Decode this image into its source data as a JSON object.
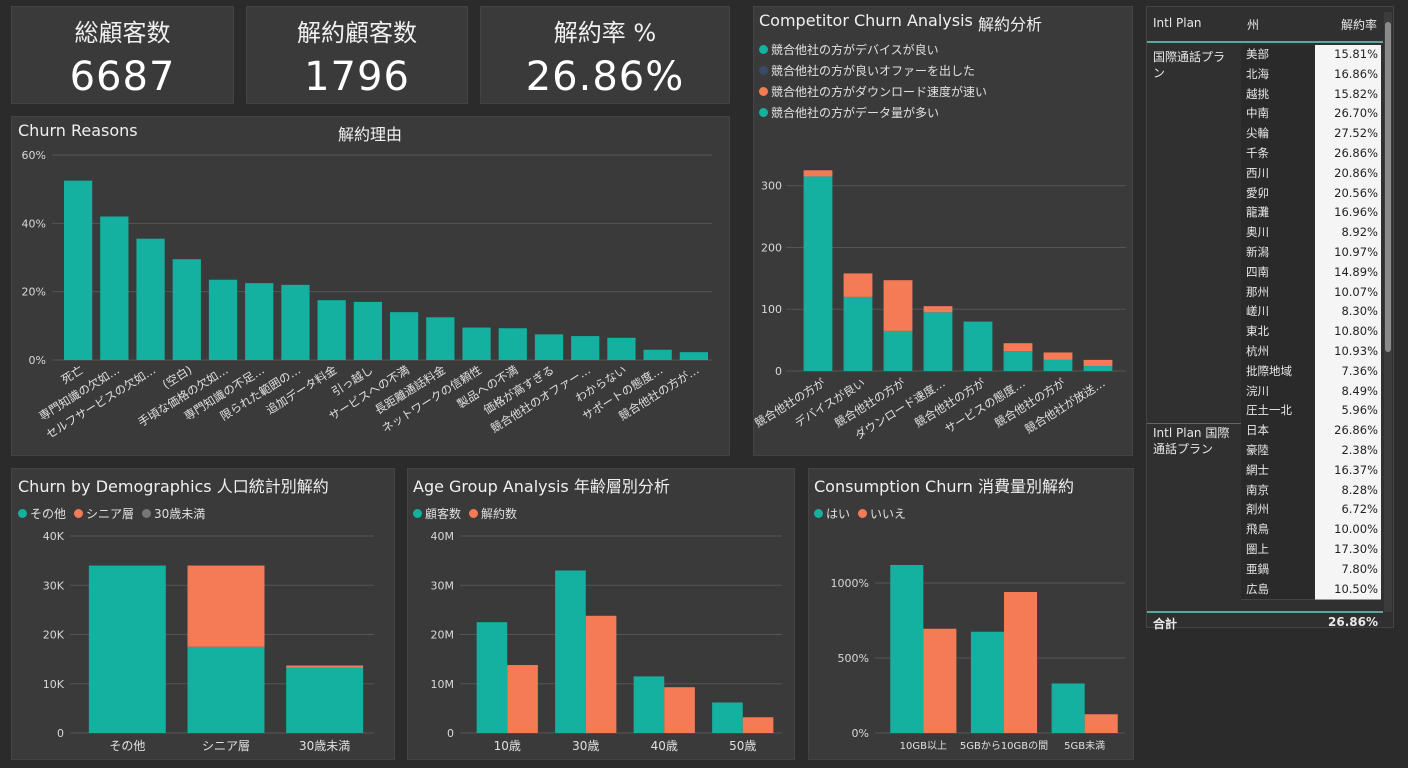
{
  "kpis": [
    {
      "label": "総顧客数",
      "value": "6687"
    },
    {
      "label": "解約顧客数",
      "value": "1796"
    },
    {
      "label": "解約率 %",
      "value": "26.86%"
    }
  ],
  "reasons": {
    "title_en": "Churn Reasons",
    "title_jp": "解約理由",
    "chart_data": {
      "type": "bar",
      "categories": [
        "死亡",
        "専門知識の欠如…",
        "セルフサービスの欠如…",
        "(空白)",
        "手頃な価格の欠如…",
        "専門知識の不足…",
        "限られた範囲の…",
        "追加データ料金",
        "引っ越し",
        "サービスへの不満",
        "長距離通話料金",
        "ネットワークの信頼性",
        "製品への不満",
        "価格が高すぎる",
        "競合他社のオファー…",
        "わからない",
        "サポートの態度…",
        "競合他社の方が…"
      ],
      "values": [
        52.5,
        42,
        35.5,
        29.5,
        23.5,
        22.5,
        22,
        17.5,
        17,
        14,
        12.5,
        9.5,
        9.3,
        7.5,
        7,
        6.5,
        3,
        2.3
      ],
      "yticks": [
        "0%",
        "20%",
        "40%",
        "60%"
      ],
      "ylim": [
        0,
        60
      ],
      "color": "#14b0a0"
    }
  },
  "competitor": {
    "title_en": "Competitor Churn Analysis",
    "title_jp": "解約分析",
    "legend": [
      {
        "label": "競合他社の方がデバイスが良い",
        "color": "#14b0a0"
      },
      {
        "label": "競合他社の方が良いオファーを出した",
        "color": "#3b4a6b"
      },
      {
        "label": "競合他社の方がダウンロード速度が速い",
        "color": "#f47b55"
      },
      {
        "label": "競合他社の方がデータ量が多い",
        "color": "#14b0a0"
      }
    ],
    "chart_data": {
      "type": "bar",
      "categories": [
        "競合他社の方が",
        "デバイスが良い",
        "競合他社の方が",
        "ダウンロード速度…",
        "競合他社の方が",
        "サービスの態度…",
        "競合他社の方が",
        "競合他社が放送…"
      ],
      "series": [
        {
          "values": [
            315,
            120,
            65,
            95,
            80,
            32,
            18,
            8
          ],
          "color": "#14b0a0"
        },
        {
          "values": [
            10,
            38,
            82,
            10,
            0,
            13,
            12,
            10
          ],
          "color": "#f47b55"
        }
      ],
      "yticks": [
        "0",
        "100",
        "200",
        "300"
      ],
      "ylim": [
        0,
        340
      ]
    }
  },
  "demographics": {
    "title": "Churn by Demographics 人口統計別解約",
    "legend": [
      {
        "label": "その他",
        "color": "#14b0a0"
      },
      {
        "label": "シニア層",
        "color": "#f47b55"
      },
      {
        "label": "30歳未満",
        "color": "#777777"
      }
    ],
    "chart_data": {
      "type": "bar",
      "categories": [
        "その他",
        "シニア層",
        "30歳未満"
      ],
      "series": [
        {
          "name": "その他",
          "values": [
            34000,
            17500,
            13300
          ],
          "color": "#14b0a0"
        },
        {
          "name": "シニア層",
          "values": [
            0,
            16500,
            400
          ],
          "color": "#f47b55"
        }
      ],
      "yticks": [
        "0",
        "10K",
        "20K",
        "30K",
        "40K"
      ],
      "ylim": [
        0,
        40000
      ]
    }
  },
  "age": {
    "title": "Age Group Analysis 年齢層別分析",
    "legend": [
      {
        "label": "顧客数",
        "color": "#14b0a0"
      },
      {
        "label": "解約数",
        "color": "#f47b55"
      }
    ],
    "chart_data": {
      "type": "bar",
      "categories": [
        "10歳",
        "30歳",
        "40歳",
        "50歳"
      ],
      "series": [
        {
          "name": "顧客数",
          "values": [
            22.5,
            33,
            11.5,
            6.2
          ],
          "color": "#14b0a0"
        },
        {
          "name": "解約数",
          "values": [
            13.8,
            23.8,
            9.3,
            3.2
          ],
          "color": "#f47b55"
        }
      ],
      "yticks": [
        "0",
        "10M",
        "20M",
        "30M",
        "40M"
      ],
      "ylim": [
        0,
        40
      ]
    }
  },
  "consumption": {
    "title": "Consumption Churn 消費量別解約",
    "legend": [
      {
        "label": "はい",
        "color": "#14b0a0"
      },
      {
        "label": "いいえ",
        "color": "#f47b55"
      }
    ],
    "chart_data": {
      "type": "bar",
      "categories": [
        "10GB以上",
        "5GBから10GBの間",
        "5GB未満"
      ],
      "series": [
        {
          "name": "はい",
          "values": [
            1120,
            675,
            330
          ],
          "color": "#14b0a0"
        },
        {
          "name": "いいえ",
          "values": [
            695,
            940,
            125
          ],
          "color": "#f47b55"
        }
      ],
      "yticks": [
        "0%",
        "500%",
        "1000%"
      ],
      "ylim": [
        0,
        1400
      ]
    }
  },
  "table": {
    "headers": [
      "Intl Plan",
      "州",
      "解約率"
    ],
    "groups": [
      {
        "label": "国際通話プラン",
        "rows": [
          [
            "美部",
            "15.81%"
          ],
          [
            "北海",
            "16.86%"
          ],
          [
            "越挑",
            "15.82%"
          ],
          [
            "中南",
            "26.70%"
          ],
          [
            "尖輪",
            "27.52%"
          ],
          [
            "千条",
            "26.86%"
          ],
          [
            "西川",
            "20.86%"
          ],
          [
            "愛卯",
            "20.56%"
          ],
          [
            "龍灘",
            "16.96%"
          ],
          [
            "奥川",
            "8.92%"
          ],
          [
            "新潟",
            "10.97%"
          ],
          [
            "四南",
            "14.89%"
          ],
          [
            "那州",
            "10.07%"
          ],
          [
            "嵯川",
            "8.30%"
          ],
          [
            "東北",
            "10.80%"
          ],
          [
            "杭州",
            "10.93%"
          ],
          [
            "批際地域",
            "7.36%"
          ],
          [
            "浣川",
            "8.49%"
          ],
          [
            "圧土一北",
            "5.96%"
          ]
        ]
      },
      {
        "label": "Intl Plan 国際通話プラン",
        "rows": [
          [
            "日本",
            "26.86%"
          ],
          [
            "豪陸",
            "2.38%"
          ],
          [
            "網士",
            "16.37%"
          ],
          [
            "南京",
            "8.28%"
          ],
          [
            "剤州",
            "6.72%"
          ],
          [
            "飛鳥",
            "10.00%"
          ],
          [
            "圏上",
            "17.30%"
          ],
          [
            "亜鍋",
            "7.80%"
          ],
          [
            "広島",
            "10.50%"
          ]
        ]
      }
    ],
    "total_label": "合計",
    "total_value": "26.86%"
  }
}
